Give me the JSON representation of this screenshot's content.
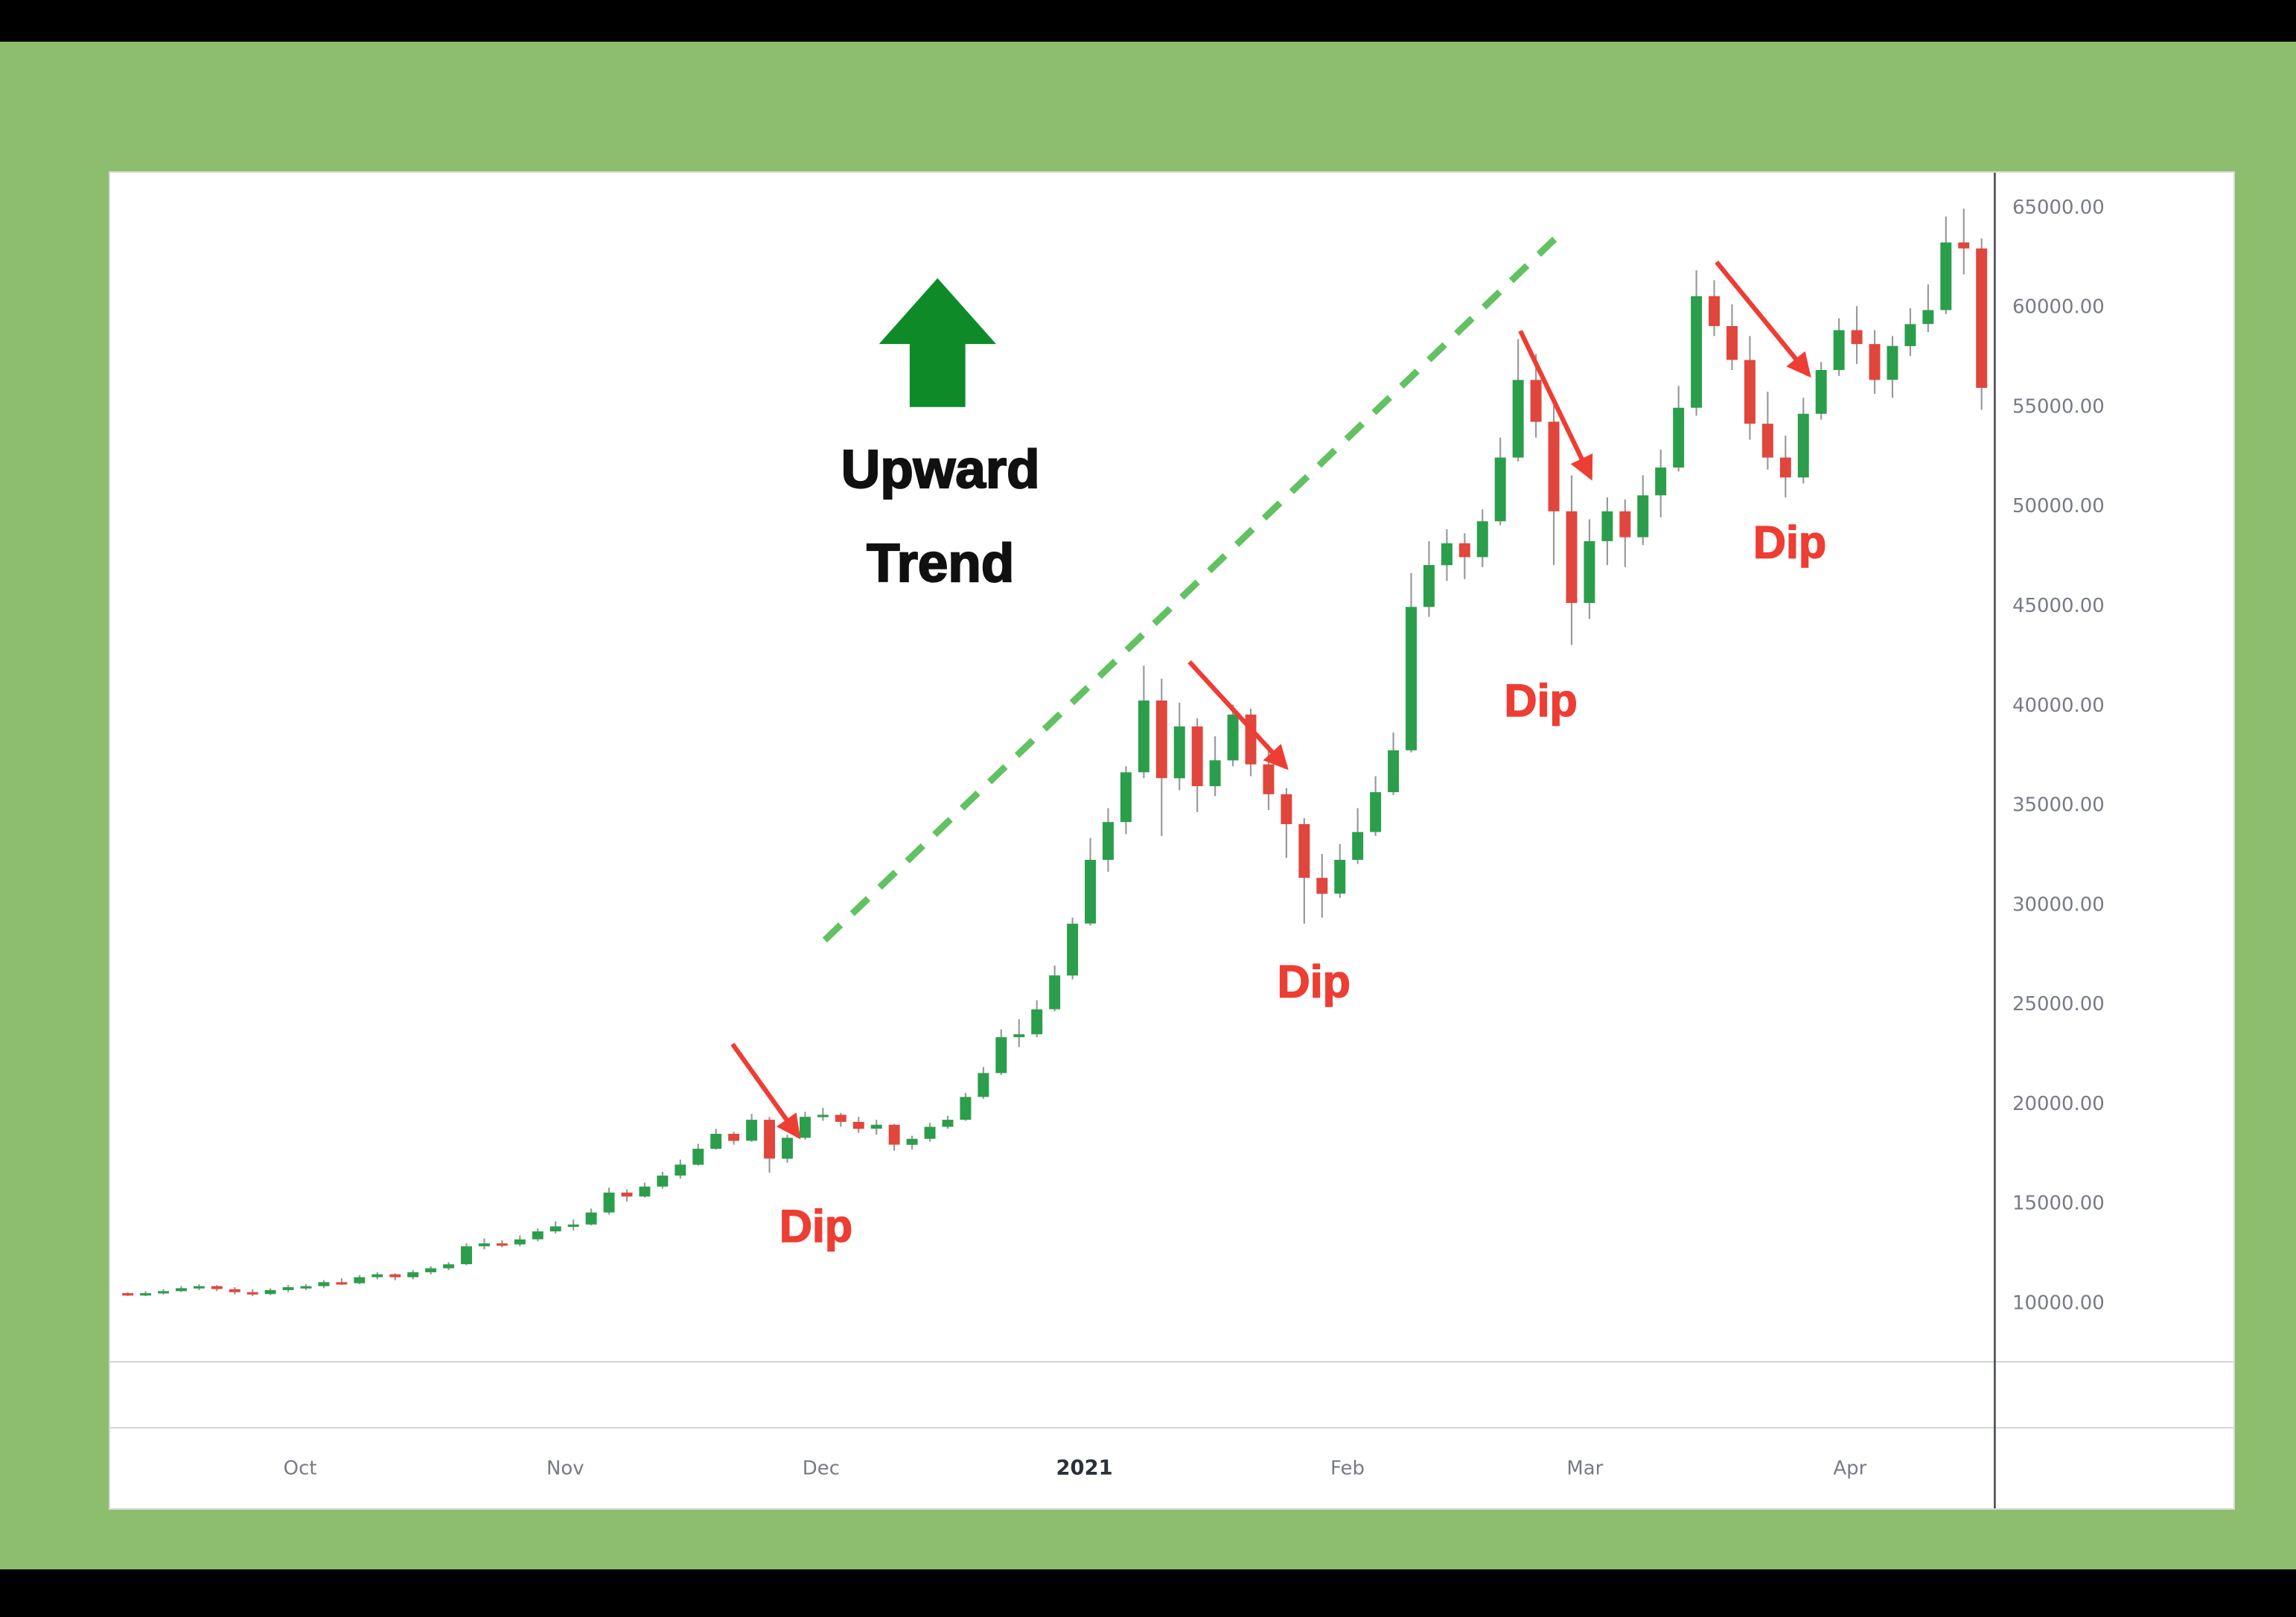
{
  "colors": {
    "page_background": "#000000",
    "frame_green": "#8dbe6d",
    "panel_background": "#ffffff",
    "trend_arrow_green": "#0e8b28",
    "dashed_line_green": "#62c162",
    "dip_red": "#ee3d33",
    "axis_text_gray": "#787b86"
  },
  "annotations": {
    "trend_line1": "Upward",
    "trend_line2": "Trend",
    "dip_labels": [
      "Dip",
      "Dip",
      "Dip",
      "Dip"
    ]
  },
  "chart_data": {
    "type": "candlestick",
    "title": "",
    "xlabel": "",
    "ylabel": "",
    "grid": false,
    "legend": false,
    "up_color": "#2b9e4b",
    "down_color": "#e0463c",
    "wick_color": "#999999",
    "ylim": [
      7000,
      66700
    ],
    "y_ticks": [
      {
        "v": 65000,
        "label": "65000.00"
      },
      {
        "v": 60000,
        "label": "60000.00"
      },
      {
        "v": 55000,
        "label": "55000.00"
      },
      {
        "v": 50000,
        "label": "50000.00"
      },
      {
        "v": 45000,
        "label": "45000.00"
      },
      {
        "v": 40000,
        "label": "40000.00"
      },
      {
        "v": 35000,
        "label": "35000.00"
      },
      {
        "v": 30000,
        "label": "30000.00"
      },
      {
        "v": 25000,
        "label": "25000.00"
      },
      {
        "v": 20000,
        "label": "20000.00"
      },
      {
        "v": 15000,
        "label": "15000.00"
      },
      {
        "v": 10000,
        "label": "10000.00"
      }
    ],
    "x_ticks": [
      {
        "label": "Oct",
        "f": 0.093
      },
      {
        "label": "Nov",
        "f": 0.236
      },
      {
        "label": "Dec",
        "f": 0.374
      },
      {
        "label": "2021",
        "f": 0.516,
        "bold": true
      },
      {
        "label": "Feb",
        "f": 0.658
      },
      {
        "label": "Mar",
        "f": 0.786
      },
      {
        "label": "Apr",
        "f": 0.929
      }
    ],
    "first_open": 10450,
    "candles_hlc": [
      [
        10500,
        10300,
        10400
      ],
      [
        10550,
        10300,
        10450
      ],
      [
        10650,
        10380,
        10550
      ],
      [
        10800,
        10500,
        10700
      ],
      [
        10900,
        10600,
        10800
      ],
      [
        10850,
        10550,
        10650
      ],
      [
        10750,
        10400,
        10500
      ],
      [
        10650,
        10300,
        10400
      ],
      [
        10700,
        10350,
        10600
      ],
      [
        10850,
        10500,
        10750
      ],
      [
        10900,
        10600,
        10800
      ],
      [
        11100,
        10700,
        11000
      ],
      [
        11200,
        10850,
        10950
      ],
      [
        11350,
        10900,
        11250
      ],
      [
        11500,
        11150,
        11400
      ],
      [
        11450,
        11100,
        11250
      ],
      [
        11600,
        11150,
        11500
      ],
      [
        11800,
        11400,
        11700
      ],
      [
        12000,
        11600,
        11900
      ],
      [
        12950,
        11850,
        12800
      ],
      [
        13200,
        12650,
        12950
      ],
      [
        13100,
        12750,
        12900
      ],
      [
        13350,
        12800,
        13150
      ],
      [
        13700,
        13050,
        13550
      ],
      [
        14050,
        13450,
        13800
      ],
      [
        14150,
        13600,
        13900
      ],
      [
        14700,
        13850,
        14500
      ],
      [
        15750,
        14400,
        15500
      ],
      [
        15650,
        15050,
        15300
      ],
      [
        16000,
        15250,
        15800
      ],
      [
        16550,
        15700,
        16350
      ],
      [
        17150,
        16200,
        16900
      ],
      [
        17950,
        16850,
        17700
      ],
      [
        18700,
        17650,
        18450
      ],
      [
        18550,
        17900,
        18100
      ],
      [
        19450,
        18050,
        19150
      ],
      [
        19300,
        16500,
        17200
      ],
      [
        18400,
        17000,
        18250
      ],
      [
        19550,
        18150,
        19300
      ],
      [
        19750,
        19100,
        19400
      ],
      [
        19500,
        18800,
        19050
      ],
      [
        19300,
        18500,
        18700
      ],
      [
        19150,
        18400,
        18900
      ],
      [
        18950,
        17600,
        17900
      ],
      [
        18350,
        17650,
        18200
      ],
      [
        19000,
        18050,
        18800
      ],
      [
        19350,
        18700,
        19150
      ],
      [
        20500,
        19100,
        20300
      ],
      [
        21800,
        20200,
        21500
      ],
      [
        23700,
        21400,
        23300
      ],
      [
        24200,
        22800,
        23450
      ],
      [
        25150,
        23300,
        24700
      ],
      [
        26900,
        24600,
        26400
      ],
      [
        29300,
        26200,
        29000
      ],
      [
        33300,
        28900,
        32200
      ],
      [
        34800,
        31600,
        34100
      ],
      [
        36900,
        33500,
        36600
      ],
      [
        41950,
        36300,
        40200
      ],
      [
        41300,
        33400,
        36300
      ],
      [
        40100,
        35700,
        38900
      ],
      [
        39300,
        34600,
        35900
      ],
      [
        38400,
        35400,
        37200
      ],
      [
        40000,
        36900,
        39500
      ],
      [
        39800,
        36400,
        37000
      ],
      [
        38000,
        34700,
        35500
      ],
      [
        35800,
        32300,
        34000
      ],
      [
        34300,
        29000,
        31300
      ],
      [
        32500,
        29300,
        30500
      ],
      [
        33000,
        30300,
        32200
      ],
      [
        34800,
        32000,
        33600
      ],
      [
        36400,
        33400,
        35600
      ],
      [
        38600,
        35450,
        37700
      ],
      [
        46600,
        37600,
        44900
      ],
      [
        48200,
        44400,
        47000
      ],
      [
        48800,
        46200,
        48100
      ],
      [
        48600,
        46300,
        47400
      ],
      [
        49800,
        46900,
        49200
      ],
      [
        53400,
        49000,
        52400
      ],
      [
        58350,
        52200,
        56300
      ],
      [
        57600,
        53400,
        54200
      ],
      [
        55000,
        47000,
        49700
      ],
      [
        51500,
        43000,
        45100
      ],
      [
        49300,
        44300,
        48200
      ],
      [
        50400,
        47000,
        49700
      ],
      [
        50300,
        46900,
        48400
      ],
      [
        51500,
        48000,
        50500
      ],
      [
        52800,
        49400,
        51900
      ],
      [
        56000,
        51700,
        54900
      ],
      [
        61800,
        54500,
        60500
      ],
      [
        61300,
        58500,
        59000
      ],
      [
        60100,
        56800,
        57300
      ],
      [
        58500,
        53300,
        54100
      ],
      [
        55700,
        51800,
        52400
      ],
      [
        53500,
        50400,
        51400
      ],
      [
        55400,
        51100,
        54600
      ],
      [
        57200,
        54300,
        56800
      ],
      [
        59400,
        56500,
        58800
      ],
      [
        60000,
        57100,
        58100
      ],
      [
        58800,
        55600,
        56300
      ],
      [
        58500,
        55400,
        58000
      ],
      [
        59900,
        57500,
        59100
      ],
      [
        61100,
        58700,
        59800
      ],
      [
        64500,
        59600,
        63200
      ],
      [
        64900,
        61600,
        62900
      ],
      [
        63400,
        54800,
        55900
      ]
    ]
  }
}
